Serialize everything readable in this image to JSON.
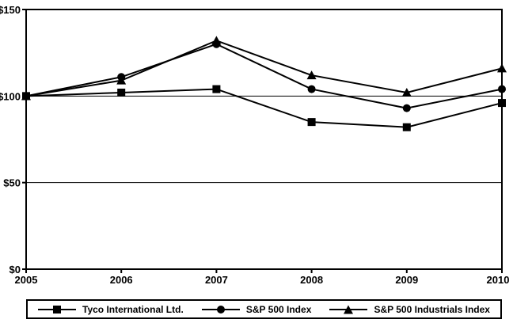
{
  "figure": {
    "background_color": "#ffffff",
    "line_color": "#000000",
    "text_color": "#000000"
  },
  "chart_data": {
    "type": "line",
    "title": "",
    "xlabel": "",
    "ylabel": "",
    "x": [
      2005,
      2006,
      2007,
      2008,
      2009,
      2010
    ],
    "x_tick_labels": [
      "2005",
      "2006",
      "2007",
      "2008",
      "2009",
      "2010"
    ],
    "y_ticks": [
      0,
      50,
      100,
      150
    ],
    "y_tick_labels": [
      "$0",
      "$50",
      "$100",
      "$150"
    ],
    "ylim": [
      0,
      150
    ],
    "gridlines_at": [
      50,
      100
    ],
    "grid": "horizontal",
    "legend_position": "bottom",
    "series": [
      {
        "name": "Tyco International Ltd.",
        "marker": "square",
        "values": [
          100,
          102,
          104,
          85,
          82,
          96
        ]
      },
      {
        "name": "S&P 500 Index",
        "marker": "circle",
        "values": [
          100,
          111,
          130,
          104,
          93,
          104
        ]
      },
      {
        "name": "S&P 500 Industrials Index",
        "marker": "triangle",
        "values": [
          100,
          109,
          132,
          112,
          102,
          116
        ]
      }
    ]
  }
}
